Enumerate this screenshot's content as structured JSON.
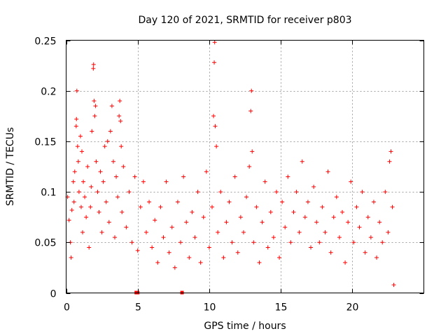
{
  "chart_data": {
    "type": "scatter",
    "title": "Day 120 of 2021, SRMTID for receiver p803",
    "xlabel": "GPS time / hours",
    "ylabel": "SRMTID / TECUs",
    "xlim": [
      0,
      25
    ],
    "ylim": [
      0,
      0.25
    ],
    "x_ticks": [
      0,
      5,
      10,
      15,
      20
    ],
    "x_tick_labels": [
      "0",
      "5",
      "10",
      "15",
      "20"
    ],
    "y_ticks": [
      0,
      0.05,
      0.1,
      0.15,
      0.2,
      0.25
    ],
    "y_tick_labels": [
      "0",
      "0.05",
      "0.1",
      "0.15",
      "0.2",
      "0.25"
    ],
    "grid": true,
    "marker": "plus",
    "series_color": "#ff0000",
    "series": [
      {
        "name": "SRMTID",
        "points": [
          [
            0.1,
            0.095
          ],
          [
            0.2,
            0.072
          ],
          [
            0.3,
            0.05
          ],
          [
            0.35,
            0.035
          ],
          [
            0.4,
            0.082
          ],
          [
            0.5,
            0.11
          ],
          [
            0.55,
            0.09
          ],
          [
            0.6,
            0.12
          ],
          [
            0.7,
            0.165
          ],
          [
            0.72,
            0.172
          ],
          [
            0.75,
            0.2
          ],
          [
            0.8,
            0.145
          ],
          [
            0.85,
            0.13
          ],
          [
            0.9,
            0.1
          ],
          [
            1.0,
            0.155
          ],
          [
            1.05,
            0.085
          ],
          [
            1.1,
            0.14
          ],
          [
            1.15,
            0.06
          ],
          [
            1.2,
            0.11
          ],
          [
            1.3,
            0.095
          ],
          [
            1.4,
            0.075
          ],
          [
            1.5,
            0.125
          ],
          [
            1.6,
            0.045
          ],
          [
            1.7,
            0.085
          ],
          [
            1.75,
            0.105
          ],
          [
            1.8,
            0.16
          ],
          [
            1.9,
            0.222
          ],
          [
            1.92,
            0.226
          ],
          [
            1.95,
            0.19
          ],
          [
            2.0,
            0.175
          ],
          [
            2.05,
            0.185
          ],
          [
            2.1,
            0.13
          ],
          [
            2.2,
            0.1
          ],
          [
            2.3,
            0.08
          ],
          [
            2.4,
            0.12
          ],
          [
            2.5,
            0.06
          ],
          [
            2.6,
            0.11
          ],
          [
            2.7,
            0.145
          ],
          [
            2.8,
            0.09
          ],
          [
            2.9,
            0.15
          ],
          [
            3.0,
            0.07
          ],
          [
            3.1,
            0.16
          ],
          [
            3.2,
            0.185
          ],
          [
            3.3,
            0.13
          ],
          [
            3.4,
            0.055
          ],
          [
            3.5,
            0.115
          ],
          [
            3.6,
            0.095
          ],
          [
            3.7,
            0.175
          ],
          [
            3.75,
            0.19
          ],
          [
            3.8,
            0.17
          ],
          [
            3.85,
            0.145
          ],
          [
            3.9,
            0.08
          ],
          [
            4.0,
            0.125
          ],
          [
            4.2,
            0.065
          ],
          [
            4.4,
            0.1
          ],
          [
            4.6,
            0.05
          ],
          [
            4.8,
            0.115
          ],
          [
            5.0,
            0.042
          ],
          [
            5.2,
            0.085
          ],
          [
            5.4,
            0.11
          ],
          [
            5.6,
            0.06
          ],
          [
            5.8,
            0.09
          ],
          [
            6.0,
            0.045
          ],
          [
            6.2,
            0.072
          ],
          [
            6.4,
            0.03
          ],
          [
            6.6,
            0.085
          ],
          [
            6.8,
            0.055
          ],
          [
            7.0,
            0.11
          ],
          [
            7.2,
            0.04
          ],
          [
            7.4,
            0.065
          ],
          [
            7.6,
            0.025
          ],
          [
            7.8,
            0.09
          ],
          [
            8.0,
            0.05
          ],
          [
            8.2,
            0.115
          ],
          [
            8.4,
            0.07
          ],
          [
            8.6,
            0.035
          ],
          [
            8.8,
            0.08
          ],
          [
            9.0,
            0.055
          ],
          [
            9.2,
            0.1
          ],
          [
            9.4,
            0.03
          ],
          [
            9.6,
            0.075
          ],
          [
            9.8,
            0.12
          ],
          [
            10.0,
            0.045
          ],
          [
            10.2,
            0.085
          ],
          [
            10.3,
            0.175
          ],
          [
            10.35,
            0.228
          ],
          [
            10.38,
            0.248
          ],
          [
            10.42,
            0.165
          ],
          [
            10.5,
            0.145
          ],
          [
            10.6,
            0.06
          ],
          [
            10.8,
            0.1
          ],
          [
            11.0,
            0.035
          ],
          [
            11.2,
            0.07
          ],
          [
            11.4,
            0.09
          ],
          [
            11.6,
            0.05
          ],
          [
            11.8,
            0.115
          ],
          [
            12.0,
            0.04
          ],
          [
            12.2,
            0.075
          ],
          [
            12.4,
            0.06
          ],
          [
            12.6,
            0.095
          ],
          [
            12.8,
            0.125
          ],
          [
            12.9,
            0.18
          ],
          [
            12.95,
            0.2
          ],
          [
            13.0,
            0.14
          ],
          [
            13.1,
            0.05
          ],
          [
            13.3,
            0.085
          ],
          [
            13.5,
            0.03
          ],
          [
            13.7,
            0.07
          ],
          [
            13.9,
            0.11
          ],
          [
            14.1,
            0.045
          ],
          [
            14.3,
            0.08
          ],
          [
            14.5,
            0.055
          ],
          [
            14.7,
            0.1
          ],
          [
            14.9,
            0.035
          ],
          [
            15.1,
            0.09
          ],
          [
            15.3,
            0.065
          ],
          [
            15.5,
            0.115
          ],
          [
            15.7,
            0.05
          ],
          [
            15.9,
            0.08
          ],
          [
            16.1,
            0.1
          ],
          [
            16.3,
            0.06
          ],
          [
            16.5,
            0.13
          ],
          [
            16.7,
            0.075
          ],
          [
            16.9,
            0.09
          ],
          [
            17.1,
            0.045
          ],
          [
            17.3,
            0.105
          ],
          [
            17.5,
            0.07
          ],
          [
            17.7,
            0.05
          ],
          [
            17.9,
            0.085
          ],
          [
            18.1,
            0.06
          ],
          [
            18.3,
            0.12
          ],
          [
            18.5,
            0.04
          ],
          [
            18.7,
            0.075
          ],
          [
            18.9,
            0.095
          ],
          [
            19.1,
            0.055
          ],
          [
            19.3,
            0.08
          ],
          [
            19.5,
            0.03
          ],
          [
            19.7,
            0.07
          ],
          [
            19.9,
            0.11
          ],
          [
            20.1,
            0.05
          ],
          [
            20.3,
            0.085
          ],
          [
            20.5,
            0.065
          ],
          [
            20.7,
            0.1
          ],
          [
            20.9,
            0.04
          ],
          [
            21.1,
            0.075
          ],
          [
            21.3,
            0.055
          ],
          [
            21.5,
            0.09
          ],
          [
            21.7,
            0.035
          ],
          [
            21.9,
            0.07
          ],
          [
            22.1,
            0.05
          ],
          [
            22.3,
            0.1
          ],
          [
            22.5,
            0.06
          ],
          [
            22.6,
            0.13
          ],
          [
            22.7,
            0.14
          ],
          [
            22.8,
            0.085
          ],
          [
            22.9,
            0.008
          ]
        ]
      }
    ],
    "gap_markers": [
      [
        4.9,
        0
      ],
      [
        5.0,
        0
      ],
      [
        8.1,
        0
      ]
    ]
  }
}
